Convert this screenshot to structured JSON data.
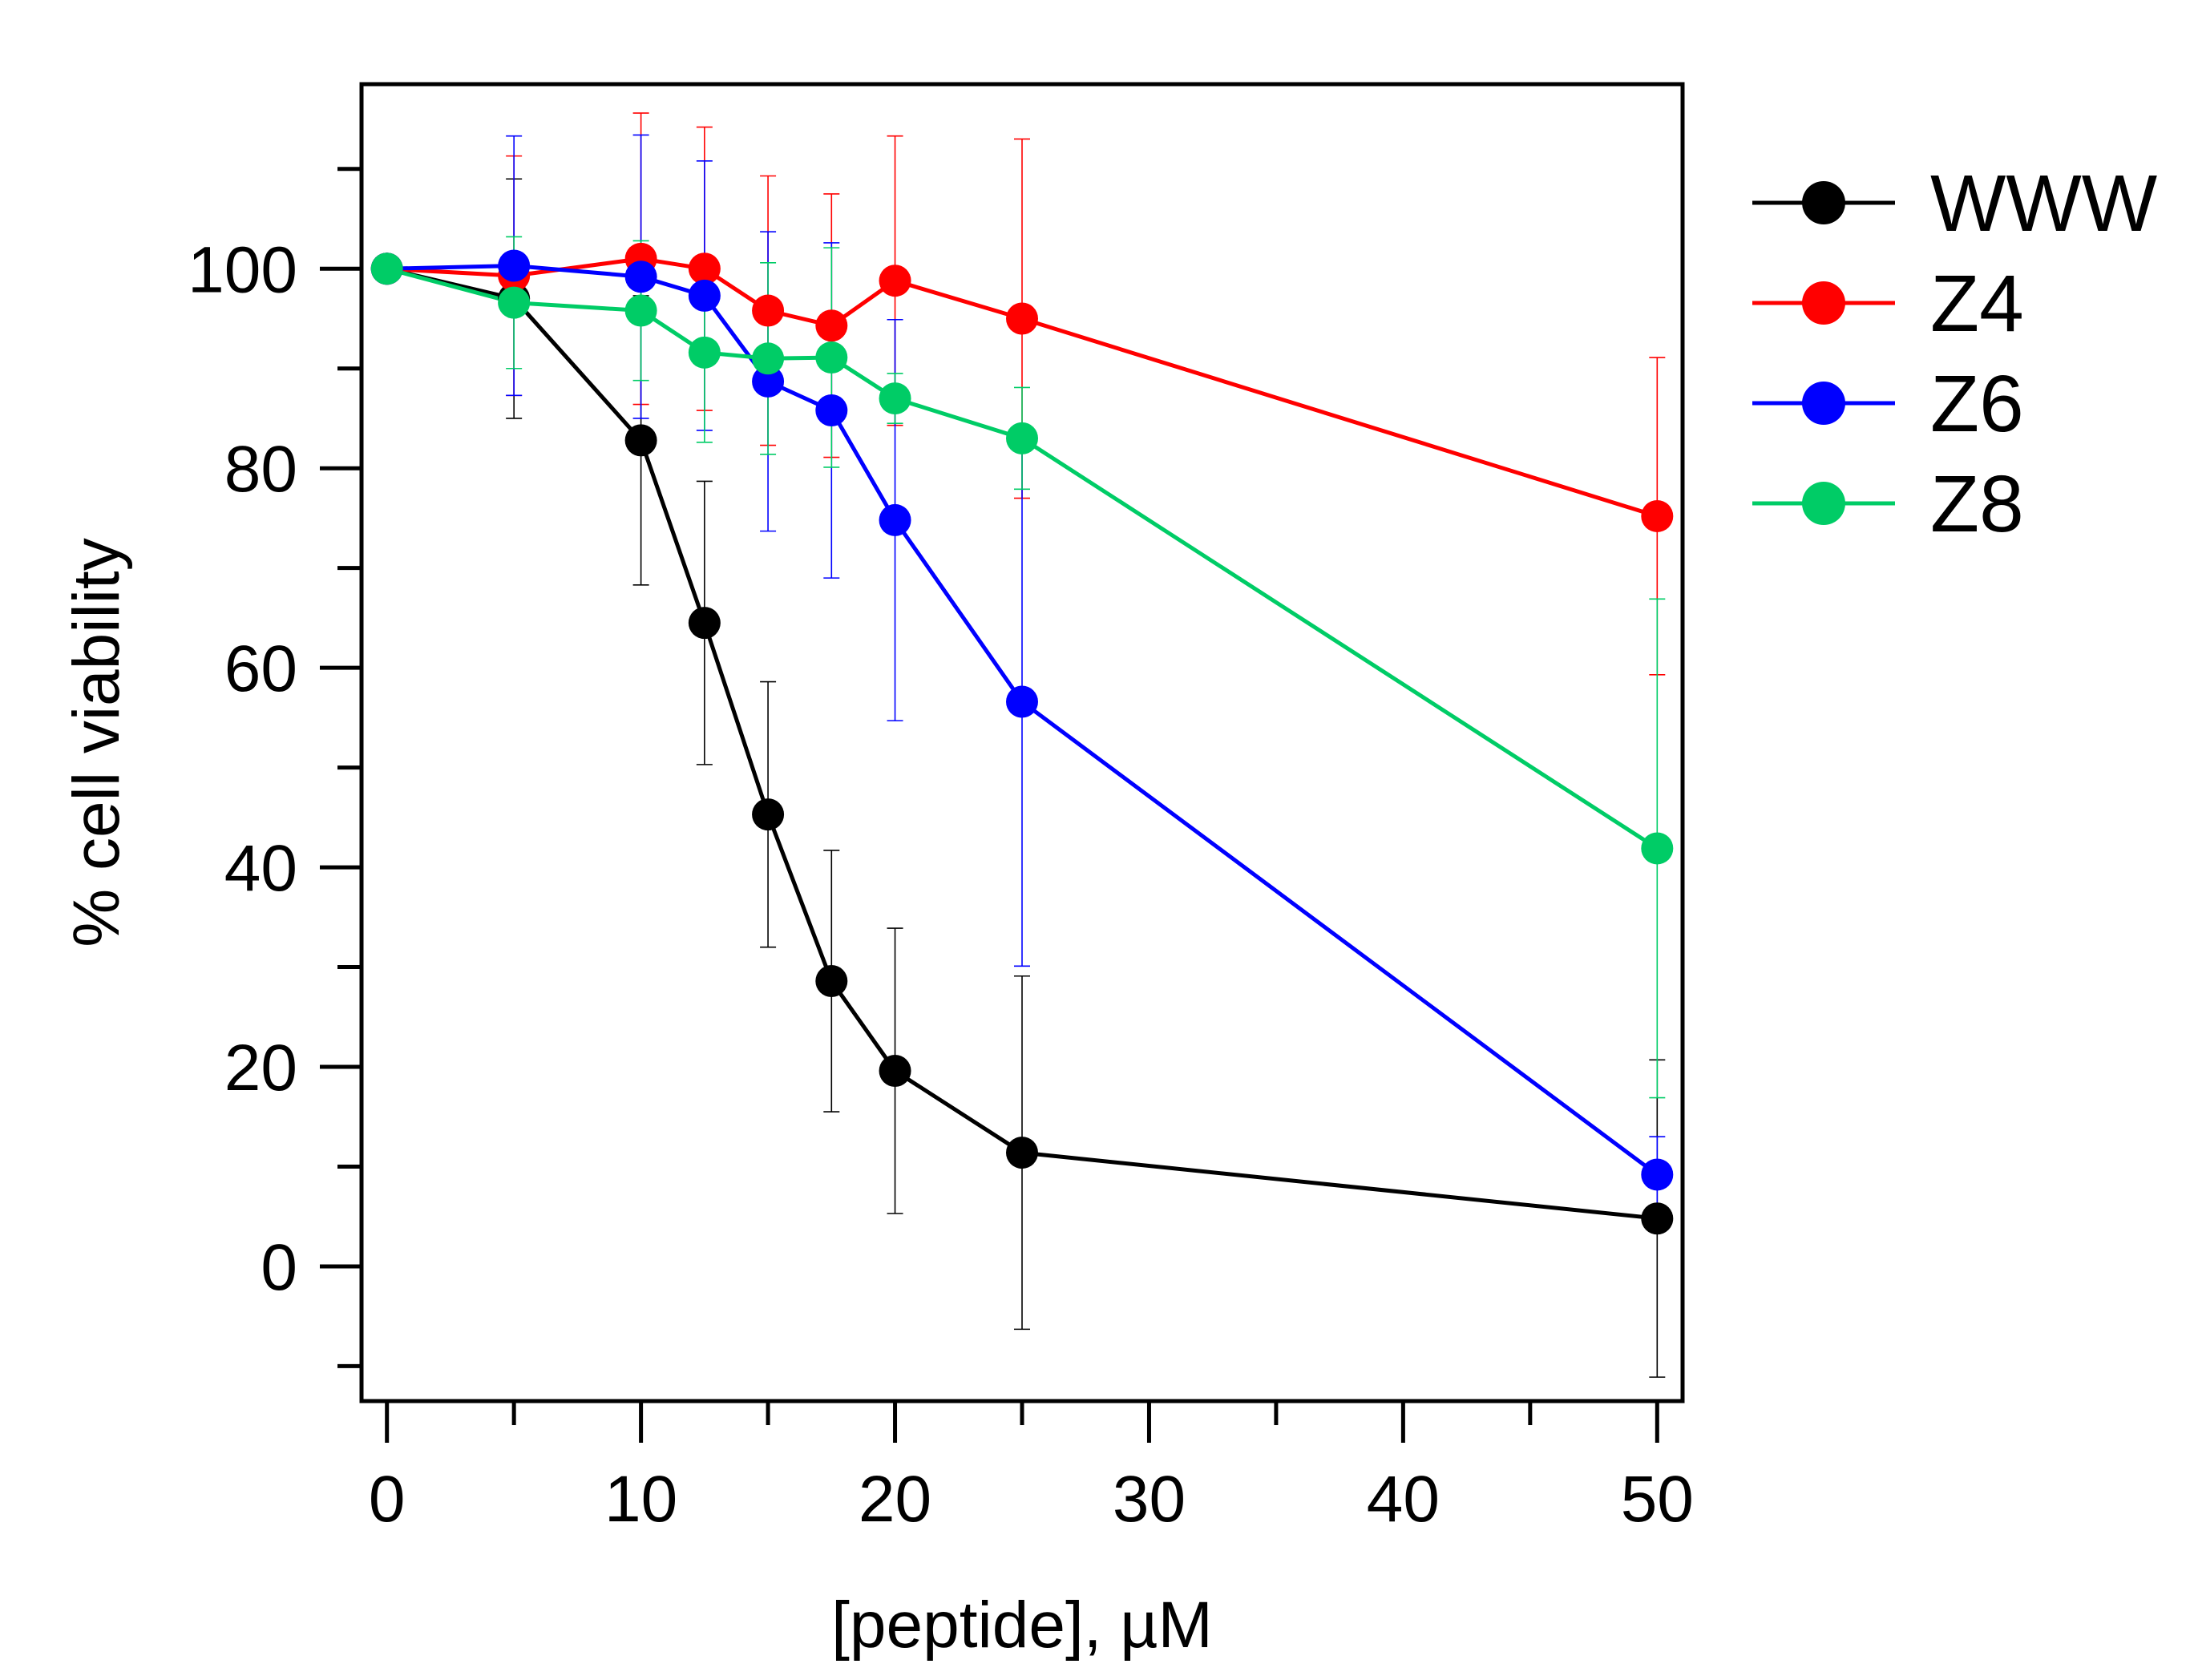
{
  "chart_data": {
    "type": "line",
    "title": "",
    "xlabel": "[peptide], µM",
    "ylabel": "% cell viability",
    "xlim": [
      -1,
      51
    ],
    "ylim": [
      -13.5,
      118.5
    ],
    "x_ticks_major": [
      0,
      10,
      20,
      30,
      40,
      50
    ],
    "x_ticks_minor": [
      5,
      15,
      25,
      35,
      45
    ],
    "x_tick_labels": [
      "0",
      "10",
      "20",
      "30",
      "40",
      "50"
    ],
    "y_ticks_major": [
      0,
      20,
      40,
      60,
      80,
      100
    ],
    "y_ticks_minor": [
      -10,
      10,
      30,
      50,
      70,
      90,
      110
    ],
    "y_tick_labels": [
      "0",
      "20",
      "40",
      "60",
      "80",
      "100"
    ],
    "grid": false,
    "legend_position": "right",
    "series": [
      {
        "name": "WWW",
        "color": "#000000",
        "x": [
          0,
          5,
          10,
          12.5,
          15,
          17.5,
          20,
          25,
          50
        ],
        "y": [
          100,
          97,
          82.8,
          64.5,
          45.3,
          28.6,
          19.6,
          11.4,
          4.8
        ],
        "err": [
          0,
          12,
          14.5,
          14.2,
          13.3,
          13.1,
          14.3,
          17.7,
          15.9
        ]
      },
      {
        "name": "Z4",
        "color": "#ff0000",
        "x": [
          0,
          5,
          10,
          12.5,
          15,
          17.5,
          20,
          25,
          50
        ],
        "y": [
          100,
          99.3,
          101,
          100,
          95.8,
          94.3,
          98.8,
          95,
          75.2
        ],
        "err": [
          0,
          12,
          14.6,
          14.2,
          13.5,
          13.2,
          14.5,
          18,
          15.9
        ]
      },
      {
        "name": "Z6",
        "color": "#0000ff",
        "x": [
          0,
          5,
          10,
          12.5,
          15,
          17.5,
          20,
          25,
          50
        ],
        "y": [
          100,
          100.3,
          99.2,
          97.3,
          88.7,
          85.8,
          74.8,
          56.6,
          9.2
        ],
        "err": [
          0,
          13,
          14.2,
          13.5,
          15,
          16.8,
          20.1,
          26.5,
          3.8
        ]
      },
      {
        "name": "Z8",
        "color": "#00cc66",
        "x": [
          0,
          5,
          10,
          12.5,
          15,
          17.5,
          20,
          25,
          50
        ],
        "y": [
          100,
          96.6,
          95.8,
          91.6,
          91,
          91.1,
          87,
          83,
          41.9
        ],
        "err": [
          0,
          6.6,
          7,
          9,
          9.6,
          11,
          2.5,
          5.1,
          25
        ]
      }
    ]
  }
}
